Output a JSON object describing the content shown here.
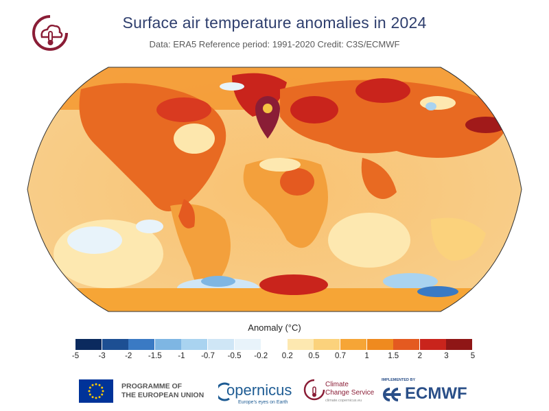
{
  "header": {
    "title": "Surface air temperature anomalies in 2024",
    "subtitle": "Data: ERA5 Reference period: 1991-2020 Credit: C3S/ECMWF"
  },
  "map": {
    "projection": "Robinson",
    "marker_icon": "location-pin-icon"
  },
  "legend": {
    "title": "Anomaly (°C)",
    "colors": [
      "#0b2a5e",
      "#1d4f93",
      "#3a7ac4",
      "#7eb6e3",
      "#a9d3f0",
      "#cfe6f6",
      "#e8f3fa",
      "#ffffff",
      "#fde8b0",
      "#fbd27c",
      "#f6a536",
      "#ef8a1f",
      "#e45a20",
      "#c9241c",
      "#8f1616"
    ],
    "ticks": [
      "-5",
      "-3",
      "-2",
      "-1.5",
      "-1",
      "-0.7",
      "-0.5",
      "-0.2",
      "0.2",
      "0.5",
      "0.7",
      "1",
      "1.5",
      "2",
      "3",
      "5"
    ]
  },
  "footer": {
    "eu_line1": "PROGRAMME OF",
    "eu_line2": "THE EUROPEAN UNION",
    "copernicus": "opernicus",
    "copernicus_tag": "Europe's eyes on Earth",
    "c3s_line1": "Climate",
    "c3s_line2": "Change Service",
    "c3s_url": "climate.copernicus.eu",
    "implemented_by": "IMPLEMENTED BY",
    "ecmwf": "ECMWF"
  }
}
